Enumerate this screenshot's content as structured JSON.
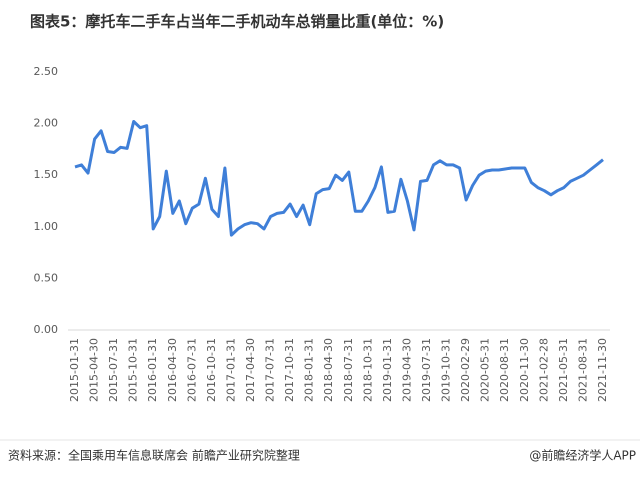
{
  "chart_data": {
    "type": "line",
    "title": "图表5：摩托车二手车占当年二手机动车总销量比重(单位：%)",
    "source": "资料来源：全国乘用车信息联席会 前瞻产业研究院整理",
    "credit": "@前瞻经济学人APP",
    "color": "#3f7fd8",
    "categories": [
      "2015-01-31",
      null,
      null,
      "2015-04-30",
      null,
      null,
      "2015-07-31",
      null,
      null,
      "2015-10-31",
      null,
      null,
      "2016-01-31",
      null,
      null,
      "2016-04-30",
      null,
      null,
      "2016-07-31",
      null,
      null,
      "2016-10-31",
      null,
      null,
      "2017-01-31",
      null,
      null,
      "2017-04-30",
      null,
      null,
      "2017-07-31",
      null,
      null,
      "2017-10-31",
      null,
      null,
      "2018-01-31",
      null,
      null,
      "2018-04-30",
      null,
      null,
      "2018-07-31",
      null,
      null,
      "2018-10-31",
      null,
      null,
      "2019-01-31",
      null,
      null,
      "2019-04-30",
      null,
      null,
      "2019-07-31",
      null,
      null,
      "2019-10-31",
      null,
      null,
      "2020-02-29",
      null,
      null,
      "2020-05-31",
      null,
      null,
      "2020-08-31",
      null,
      null,
      "2020-11-30",
      null,
      null,
      "2021-02-28",
      null,
      null,
      "2021-05-31",
      null,
      null,
      "2021-08-31",
      null,
      null,
      "2021-11-30"
    ],
    "values": [
      1.58,
      1.6,
      1.52,
      1.85,
      1.93,
      1.73,
      1.72,
      1.77,
      1.76,
      2.02,
      1.96,
      1.98,
      0.98,
      1.1,
      1.54,
      1.13,
      1.25,
      1.03,
      1.18,
      1.22,
      1.47,
      1.17,
      1.1,
      1.57,
      0.92,
      0.98,
      1.02,
      1.04,
      1.03,
      0.98,
      1.1,
      1.13,
      1.14,
      1.22,
      1.1,
      1.21,
      1.02,
      1.32,
      1.36,
      1.37,
      1.5,
      1.45,
      1.53,
      1.15,
      1.15,
      1.25,
      1.38,
      1.58,
      1.14,
      1.15,
      1.46,
      1.25,
      0.97,
      1.44,
      1.45,
      1.6,
      1.64,
      1.6,
      1.6,
      1.57,
      1.26,
      1.4,
      1.5,
      1.54,
      1.55,
      1.55,
      1.56,
      1.57,
      1.57,
      1.57,
      1.43,
      1.38,
      1.35,
      1.31,
      1.35,
      1.38,
      1.44,
      1.47,
      1.5,
      1.55,
      1.6,
      1.65
    ],
    "ylim": [
      0,
      2.5
    ],
    "yticks": [
      {
        "value": 0,
        "label": "0.00"
      },
      {
        "value": 0.5,
        "label": "0.50"
      },
      {
        "value": 1,
        "label": "1.00"
      },
      {
        "value": 1.5,
        "label": "1.50"
      },
      {
        "value": 2,
        "label": "2.00"
      },
      {
        "value": 2.5,
        "label": "2.50"
      }
    ],
    "grid": false
  }
}
